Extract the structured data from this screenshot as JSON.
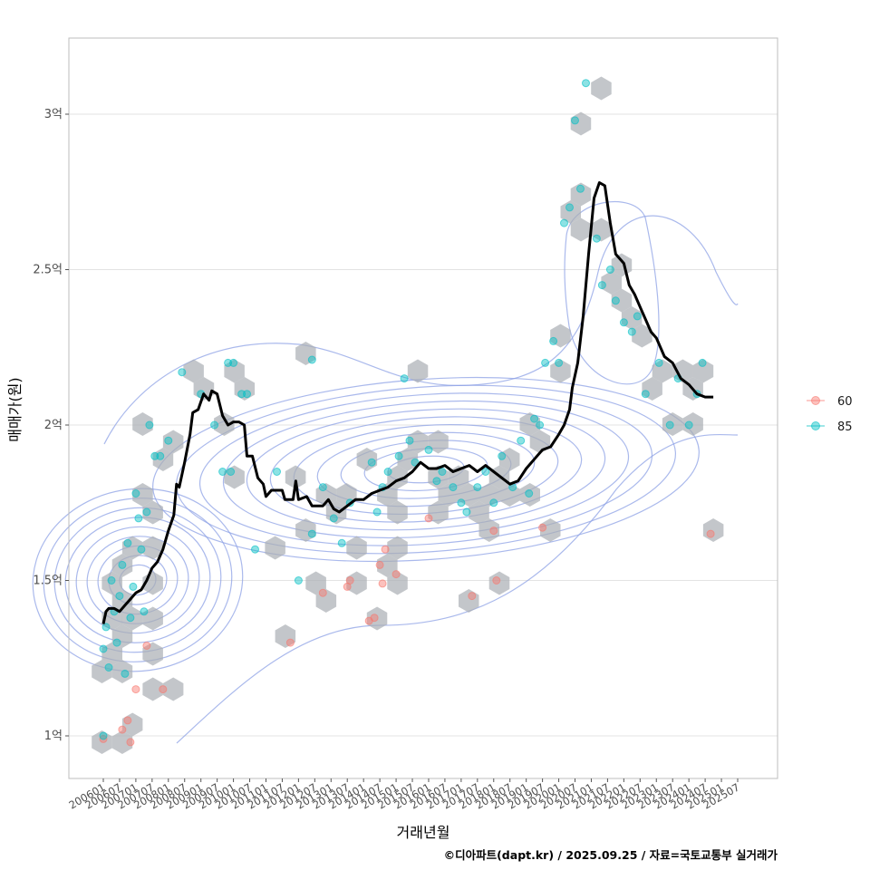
{
  "chart_data": {
    "type": "scatter",
    "xlabel": "거래년월",
    "ylabel": "매매가(원)",
    "caption": "©디아파트(dapt.kr) / 2025.09.25 / 자료=국토교통부 실거래가",
    "x_range": [
      "2006-01",
      "2025-07"
    ],
    "x_ticks": [
      "200601",
      "200607",
      "200701",
      "200707",
      "200801",
      "200807",
      "200901",
      "200907",
      "201001",
      "201007",
      "201101",
      "201107",
      "201201",
      "201207",
      "201301",
      "201307",
      "201401",
      "201407",
      "201501",
      "201507",
      "201601",
      "201607",
      "201701",
      "201707",
      "201801",
      "201807",
      "201901",
      "201907",
      "202001",
      "202007",
      "202101",
      "202107",
      "202201",
      "202207",
      "202301",
      "202307",
      "202401",
      "202407",
      "202501",
      "202507"
    ],
    "y_ticks": [
      {
        "label": "1억",
        "value": 100000000
      },
      {
        "label": "1.5억",
        "value": 150000000
      },
      {
        "label": "2억",
        "value": 200000000
      },
      {
        "label": "2.5억",
        "value": 250000000
      },
      {
        "label": "3억",
        "value": 300000000
      }
    ],
    "y_range_eok": [
      0.87,
      3.25
    ],
    "grid": true,
    "legend": {
      "position": "right",
      "entries": [
        {
          "name": "60",
          "color": "#F8766D"
        },
        {
          "name": "85",
          "color": "#00BFC4"
        }
      ]
    },
    "colors": {
      "hex": "#a9aeb4",
      "trend": "#000000",
      "contour": "#8ea2e6"
    },
    "trend_line": [
      [
        "2006-01",
        1.36
      ],
      [
        "2006-02",
        1.4
      ],
      [
        "2006-03",
        1.41
      ],
      [
        "2006-05",
        1.41
      ],
      [
        "2006-07",
        1.4
      ],
      [
        "2006-09",
        1.42
      ],
      [
        "2006-11",
        1.44
      ],
      [
        "2007-01",
        1.46
      ],
      [
        "2007-03",
        1.47
      ],
      [
        "2007-05",
        1.5
      ],
      [
        "2007-07",
        1.54
      ],
      [
        "2007-09",
        1.56
      ],
      [
        "2007-11",
        1.6
      ],
      [
        "2008-01",
        1.66
      ],
      [
        "2008-03",
        1.71
      ],
      [
        "2008-04",
        1.81
      ],
      [
        "2008-05",
        1.8
      ],
      [
        "2008-07",
        1.88
      ],
      [
        "2008-09",
        1.97
      ],
      [
        "2008-10",
        2.04
      ],
      [
        "2008-12",
        2.05
      ],
      [
        "2009-02",
        2.1
      ],
      [
        "2009-04",
        2.08
      ],
      [
        "2009-05",
        2.11
      ],
      [
        "2009-07",
        2.1
      ],
      [
        "2009-09",
        2.03
      ],
      [
        "2009-11",
        2.0
      ],
      [
        "2010-01",
        2.01
      ],
      [
        "2010-03",
        2.01
      ],
      [
        "2010-05",
        2.0
      ],
      [
        "2010-06",
        1.9
      ],
      [
        "2010-08",
        1.9
      ],
      [
        "2010-10",
        1.83
      ],
      [
        "2010-12",
        1.81
      ],
      [
        "2011-01",
        1.77
      ],
      [
        "2011-03",
        1.79
      ],
      [
        "2011-07",
        1.79
      ],
      [
        "2011-08",
        1.76
      ],
      [
        "2011-11",
        1.76
      ],
      [
        "2011-12",
        1.82
      ],
      [
        "2012-01",
        1.76
      ],
      [
        "2012-04",
        1.77
      ],
      [
        "2012-06",
        1.74
      ],
      [
        "2012-10",
        1.74
      ],
      [
        "2012-12",
        1.76
      ],
      [
        "2013-02",
        1.73
      ],
      [
        "2013-04",
        1.72
      ],
      [
        "2013-07",
        1.74
      ],
      [
        "2013-10",
        1.76
      ],
      [
        "2014-01",
        1.76
      ],
      [
        "2014-04",
        1.78
      ],
      [
        "2014-07",
        1.79
      ],
      [
        "2014-10",
        1.8
      ],
      [
        "2015-01",
        1.82
      ],
      [
        "2015-04",
        1.83
      ],
      [
        "2015-07",
        1.85
      ],
      [
        "2015-10",
        1.88
      ],
      [
        "2016-01",
        1.86
      ],
      [
        "2016-04",
        1.86
      ],
      [
        "2016-07",
        1.87
      ],
      [
        "2016-10",
        1.85
      ],
      [
        "2017-01",
        1.86
      ],
      [
        "2017-04",
        1.87
      ],
      [
        "2017-07",
        1.85
      ],
      [
        "2017-10",
        1.87
      ],
      [
        "2018-01",
        1.85
      ],
      [
        "2018-04",
        1.83
      ],
      [
        "2018-07",
        1.81
      ],
      [
        "2018-10",
        1.82
      ],
      [
        "2019-01",
        1.86
      ],
      [
        "2019-04",
        1.89
      ],
      [
        "2019-07",
        1.92
      ],
      [
        "2019-10",
        1.93
      ],
      [
        "2020-01",
        1.97
      ],
      [
        "2020-03",
        2.0
      ],
      [
        "2020-05",
        2.05
      ],
      [
        "2020-06",
        2.12
      ],
      [
        "2020-08",
        2.2
      ],
      [
        "2020-10",
        2.35
      ],
      [
        "2020-12",
        2.55
      ],
      [
        "2021-02",
        2.73
      ],
      [
        "2021-04",
        2.78
      ],
      [
        "2021-06",
        2.77
      ],
      [
        "2021-08",
        2.65
      ],
      [
        "2021-10",
        2.55
      ],
      [
        "2022-01",
        2.52
      ],
      [
        "2022-03",
        2.45
      ],
      [
        "2022-05",
        2.42
      ],
      [
        "2022-07",
        2.38
      ],
      [
        "2022-09",
        2.34
      ],
      [
        "2022-11",
        2.3
      ],
      [
        "2023-01",
        2.28
      ],
      [
        "2023-04",
        2.22
      ],
      [
        "2023-07",
        2.2
      ],
      [
        "2023-10",
        2.15
      ],
      [
        "2024-01",
        2.13
      ],
      [
        "2024-04",
        2.1
      ],
      [
        "2024-07",
        2.09
      ],
      [
        "2024-10",
        2.09
      ]
    ],
    "series": [
      {
        "name": "60",
        "points": [
          [
            "2006-01",
            0.99
          ],
          [
            "2006-08",
            1.02
          ],
          [
            "2006-10",
            1.05
          ],
          [
            "2006-11",
            0.98
          ],
          [
            "2007-01",
            1.15
          ],
          [
            "2007-05",
            1.29
          ],
          [
            "2007-11",
            1.15
          ],
          [
            "2011-10",
            1.3
          ],
          [
            "2012-10",
            1.46
          ],
          [
            "2013-07",
            1.48
          ],
          [
            "2013-08",
            1.5
          ],
          [
            "2014-03",
            1.37
          ],
          [
            "2014-05",
            1.38
          ],
          [
            "2014-07",
            1.55
          ],
          [
            "2014-08",
            1.49
          ],
          [
            "2014-09",
            1.6
          ],
          [
            "2015-01",
            1.52
          ],
          [
            "2016-01",
            1.7
          ],
          [
            "2017-05",
            1.45
          ],
          [
            "2018-01",
            1.66
          ],
          [
            "2018-02",
            1.5
          ],
          [
            "2019-07",
            1.67
          ],
          [
            "2024-09",
            1.65
          ]
        ]
      },
      {
        "name": "85",
        "points": [
          [
            "2006-01",
            1.0
          ],
          [
            "2006-01",
            1.28
          ],
          [
            "2006-02",
            1.35
          ],
          [
            "2006-03",
            1.22
          ],
          [
            "2006-04",
            1.5
          ],
          [
            "2006-05",
            1.4
          ],
          [
            "2006-06",
            1.3
          ],
          [
            "2006-07",
            1.45
          ],
          [
            "2006-08",
            1.55
          ],
          [
            "2006-09",
            1.2
          ],
          [
            "2006-10",
            1.62
          ],
          [
            "2006-11",
            1.38
          ],
          [
            "2006-12",
            1.48
          ],
          [
            "2007-01",
            1.78
          ],
          [
            "2007-02",
            1.7
          ],
          [
            "2007-03",
            1.6
          ],
          [
            "2007-04",
            1.4
          ],
          [
            "2007-05",
            1.72
          ],
          [
            "2007-06",
            2.0
          ],
          [
            "2007-08",
            1.9
          ],
          [
            "2007-10",
            1.9
          ],
          [
            "2008-01",
            1.95
          ],
          [
            "2008-06",
            2.17
          ],
          [
            "2009-01",
            2.1
          ],
          [
            "2009-06",
            2.0
          ],
          [
            "2009-11",
            2.2
          ],
          [
            "2010-01",
            2.2
          ],
          [
            "2010-04",
            2.1
          ],
          [
            "2010-06",
            2.1
          ],
          [
            "2009-09",
            1.85
          ],
          [
            "2009-12",
            1.85
          ],
          [
            "2010-09",
            1.6
          ],
          [
            "2011-05",
            1.85
          ],
          [
            "2012-01",
            1.5
          ],
          [
            "2012-06",
            1.65
          ],
          [
            "2012-06",
            2.21
          ],
          [
            "2012-10",
            1.8
          ],
          [
            "2013-02",
            1.7
          ],
          [
            "2013-05",
            1.62
          ],
          [
            "2013-08",
            1.75
          ],
          [
            "2014-04",
            1.88
          ],
          [
            "2014-06",
            1.72
          ],
          [
            "2014-08",
            1.8
          ],
          [
            "2014-10",
            1.85
          ],
          [
            "2015-02",
            1.9
          ],
          [
            "2015-04",
            2.15
          ],
          [
            "2015-06",
            1.95
          ],
          [
            "2015-08",
            1.88
          ],
          [
            "2016-01",
            1.92
          ],
          [
            "2016-04",
            1.82
          ],
          [
            "2016-06",
            1.85
          ],
          [
            "2016-10",
            1.8
          ],
          [
            "2017-01",
            1.75
          ],
          [
            "2017-03",
            1.72
          ],
          [
            "2017-07",
            1.8
          ],
          [
            "2017-10",
            1.85
          ],
          [
            "2018-01",
            1.75
          ],
          [
            "2018-04",
            1.9
          ],
          [
            "2018-08",
            1.8
          ],
          [
            "2018-11",
            1.95
          ],
          [
            "2019-02",
            1.78
          ],
          [
            "2019-04",
            2.02
          ],
          [
            "2019-06",
            2.0
          ],
          [
            "2019-08",
            2.2
          ],
          [
            "2019-11",
            2.27
          ],
          [
            "2020-01",
            2.2
          ],
          [
            "2020-03",
            2.65
          ],
          [
            "2020-05",
            2.7
          ],
          [
            "2020-07",
            2.98
          ],
          [
            "2020-09",
            2.76
          ],
          [
            "2020-11",
            3.1
          ],
          [
            "2021-03",
            2.6
          ],
          [
            "2021-05",
            2.45
          ],
          [
            "2021-08",
            2.5
          ],
          [
            "2021-10",
            2.4
          ],
          [
            "2022-01",
            2.33
          ],
          [
            "2022-04",
            2.3
          ],
          [
            "2022-06",
            2.35
          ],
          [
            "2022-09",
            2.1
          ],
          [
            "2023-02",
            2.2
          ],
          [
            "2023-06",
            2.0
          ],
          [
            "2023-09",
            2.15
          ],
          [
            "2024-01",
            2.0
          ],
          [
            "2024-04",
            2.1
          ],
          [
            "2024-06",
            2.2
          ]
        ]
      }
    ]
  }
}
